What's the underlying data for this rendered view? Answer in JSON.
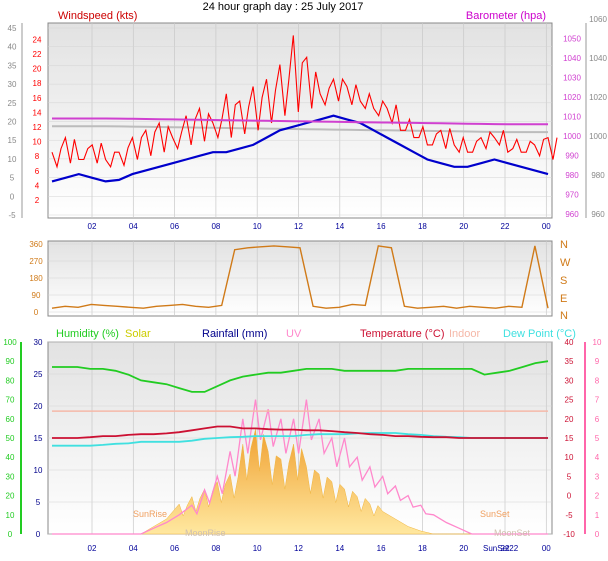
{
  "title": "24 hour graph day : 25 July 2017",
  "colors": {
    "bg": "#ffffff",
    "plot_top": "#e2e2e2",
    "plot_bottom": "#ffffff",
    "grid": "#c8c8c8",
    "wind": "#ff0000",
    "gust": "#ff0000",
    "baro": "#d040d0",
    "baro_gray": "#bcbcbc",
    "windspeed_label": "#cc0000",
    "baro_label": "#cc00cc",
    "time_axis": "#000099",
    "direction": "#d07a18",
    "humidity": "#22cc22",
    "solar": "#f0b640",
    "solar_label": "#cccc00",
    "rainfall": "#00008b",
    "uv": "#ff88cc",
    "temperature": "#cc1133",
    "indoor": "#f5b8a8",
    "dewpoint": "#40e0e0",
    "sun_label": "#f0a060",
    "moon_label": "#d0c0b0"
  },
  "time_ticks": [
    "02",
    "04",
    "06",
    "08",
    "10",
    "12",
    "14",
    "16",
    "18",
    "20",
    "22",
    "00"
  ],
  "chart_data": [
    {
      "type": "line",
      "name": "wind",
      "series": [
        {
          "name": "Windspeed (kts)",
          "axis": "left",
          "values": [
            2,
            2.5,
            3,
            2.5,
            2,
            2.2,
            3,
            3.5,
            4,
            4.5,
            5,
            5.5,
            6,
            6,
            6.5,
            7,
            8,
            9,
            9.5,
            10,
            10.5,
            11,
            10.5,
            10,
            9,
            8,
            7,
            6,
            5,
            4.5,
            4,
            4,
            4.5,
            5,
            4.5,
            4,
            3.5,
            3
          ]
        },
        {
          "name": "Gust",
          "axis": "left",
          "values": [
            6,
            8,
            5,
            7,
            5,
            6,
            8,
            9,
            10,
            8,
            11,
            12,
            10,
            14,
            13,
            15,
            16,
            18,
            22,
            19,
            14,
            16,
            15,
            13,
            12,
            12,
            9,
            8,
            7,
            9,
            7,
            6,
            8,
            8,
            6,
            6,
            7,
            8
          ]
        },
        {
          "name": "Barometer (hpa)",
          "axis": "right",
          "values": [
            1009,
            1009,
            1009,
            1009,
            1009,
            1008.9,
            1008.8,
            1008.7,
            1008.6,
            1008.5,
            1008.4,
            1008.3,
            1008.2,
            1008.1,
            1008,
            1007.9,
            1007.8,
            1007.7,
            1007.6,
            1007.5,
            1007.4,
            1007.3,
            1007.2,
            1007.1,
            1007,
            1006.9,
            1006.8,
            1006.7,
            1006.6,
            1006.5,
            1006.4,
            1006.3,
            1006.2,
            1006.1,
            1006,
            1006,
            1006,
            1006
          ]
        }
      ],
      "left_axis": {
        "label": "Windspeed (kts)",
        "ylim": [
          -5,
          45
        ],
        "ticks": [
          "-5",
          "0",
          "5",
          "10",
          "15",
          "20",
          "25",
          "30",
          "35",
          "40",
          "45"
        ]
      },
      "left_inner_ticks": [
        "2",
        "4",
        "6",
        "8",
        "10",
        "12",
        "14",
        "16",
        "18",
        "20",
        "22",
        "24"
      ],
      "right_axis": {
        "label": "Barometer (hpa)",
        "ticks": [
          "960",
          "970",
          "980",
          "990",
          "1000",
          "1010",
          "1020",
          "1030",
          "1040",
          "1050"
        ]
      },
      "right_inner_ticks": [
        "960",
        "980",
        "1000",
        "1020",
        "1040",
        "1060"
      ]
    },
    {
      "type": "scatter",
      "name": "wind_direction",
      "left_ticks": [
        "0",
        "90",
        "180",
        "270",
        "360"
      ],
      "right_labels": [
        "N",
        "W",
        "S",
        "E",
        "N"
      ],
      "values": [
        20,
        30,
        25,
        40,
        35,
        30,
        25,
        20,
        30,
        35,
        40,
        30,
        25,
        35,
        330,
        340,
        345,
        350,
        345,
        340,
        30,
        20,
        25,
        40,
        35,
        350,
        340,
        30,
        20,
        25,
        30,
        20,
        30,
        25,
        20,
        30,
        25,
        350,
        20
      ]
    },
    {
      "type": "line",
      "name": "environment",
      "legend": [
        "Humidity (%)",
        "Solar",
        "Rainfall (mm)",
        "UV",
        "Temperature (°C)",
        "Indoor",
        "Dew Point (°C)"
      ],
      "axes": {
        "humidity_ticks": [
          "0",
          "10",
          "20",
          "30",
          "40",
          "50",
          "60",
          "70",
          "80",
          "90",
          "100"
        ],
        "rain_ticks": [
          "0",
          "5",
          "10",
          "15",
          "20",
          "25",
          "30"
        ],
        "temp_ticks": [
          "-10",
          "-5",
          "0",
          "5",
          "10",
          "15",
          "20",
          "25",
          "30",
          "35",
          "40"
        ],
        "uv_ticks": [
          "0",
          "1",
          "2",
          "3",
          "4",
          "5",
          "6",
          "7",
          "8",
          "9",
          "10"
        ]
      },
      "series": [
        {
          "name": "Humidity (%)",
          "values": [
            87,
            87,
            87,
            86,
            86,
            85,
            83,
            80,
            79,
            78,
            76,
            74,
            74,
            77,
            80,
            82,
            83,
            84,
            84,
            85,
            86,
            86,
            86,
            85,
            85,
            85,
            85,
            85,
            86,
            86,
            86,
            86,
            86,
            86,
            83,
            84,
            85,
            87,
            89,
            90
          ]
        },
        {
          "name": "Temperature (°C)",
          "values": [
            15,
            15,
            15,
            15.2,
            15.5,
            15.5,
            15.8,
            16,
            16,
            16.2,
            16.5,
            17,
            17.5,
            18,
            18,
            17.5,
            17.5,
            17.3,
            17.2,
            17.2,
            17,
            17,
            16.8,
            16.5,
            16.3,
            16,
            15.8,
            15.5,
            15.5,
            15.3,
            15.2,
            15.2,
            15,
            15,
            15,
            15,
            15,
            15,
            15,
            15
          ]
        },
        {
          "name": "Dew Point (°C)",
          "values": [
            13,
            13,
            13,
            13,
            13.2,
            13.5,
            13.6,
            14,
            14,
            14,
            14,
            14.3,
            14.8,
            15,
            15.2,
            15.3,
            15.5,
            15.5,
            15.5,
            15.5,
            15.8,
            16,
            16,
            16,
            16.2,
            16.3,
            16.3,
            16.3,
            16,
            15.8,
            15.5,
            15.3,
            15.2,
            15,
            15,
            15,
            15,
            15,
            15,
            15
          ]
        },
        {
          "name": "Indoor",
          "values": [
            22,
            22,
            22,
            22,
            22,
            22,
            22,
            22,
            22,
            22,
            22,
            22,
            22,
            22,
            22,
            22,
            22,
            22,
            22,
            22,
            22,
            22,
            22,
            22,
            22,
            22,
            22,
            22,
            22,
            22,
            22,
            22,
            22,
            22,
            22,
            22,
            22,
            22,
            22,
            22
          ]
        },
        {
          "name": "UV",
          "values": [
            0,
            0,
            0,
            0,
            0,
            0,
            0,
            0,
            0.3,
            0.6,
            1,
            1.5,
            2.3,
            3,
            4.3,
            6,
            7,
            6.5,
            6,
            6,
            7,
            6,
            5,
            5,
            4,
            3.5,
            3,
            2.5,
            2,
            1.5,
            1,
            0.6,
            0.3,
            0,
            0,
            0,
            0,
            0,
            0,
            0
          ]
        },
        {
          "name": "Solar",
          "values": [
            0,
            0,
            0,
            0,
            0,
            0,
            0,
            0,
            0.05,
            0.1,
            0.2,
            0.25,
            0.3,
            0.35,
            0.4,
            0.6,
            0.7,
            0.55,
            0.5,
            0.6,
            0.45,
            0.4,
            0.35,
            0.3,
            0.25,
            0.2,
            0.15,
            0.1,
            0.05,
            0.02,
            0,
            0,
            0,
            0,
            0,
            0,
            0,
            0,
            0,
            0
          ]
        },
        {
          "name": "Rainfall (mm)",
          "values": [
            0,
            0,
            0,
            0,
            0,
            0,
            0,
            0,
            0,
            0,
            0,
            0,
            0,
            0,
            0,
            0,
            0,
            0,
            0,
            0,
            0,
            0,
            0,
            0,
            0,
            0,
            0,
            0,
            0,
            0,
            0,
            0,
            0,
            0,
            0,
            0,
            0,
            0,
            0,
            0
          ]
        }
      ],
      "annotations": {
        "sunrise": "SunRise",
        "sunset": "SunSet",
        "moonrise": "MoonRise",
        "moonset": "MoonSet",
        "sunset22": "SunSet22"
      }
    }
  ]
}
